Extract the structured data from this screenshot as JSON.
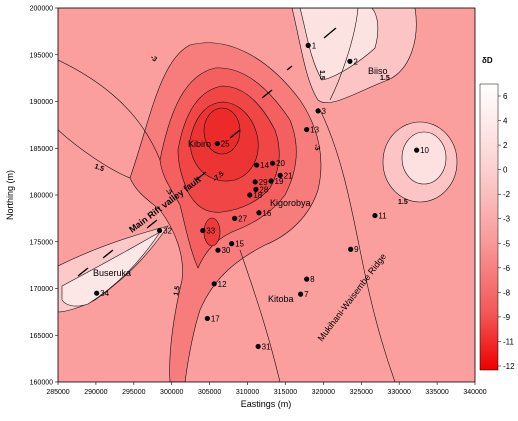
{
  "map": {
    "x_axis_title": "Eastings (m)",
    "y_axis_title": "Northing (m)",
    "x_ticks": [
      "285000",
      "290000",
      "295000",
      "300000",
      "305000",
      "310000",
      "315000",
      "320000",
      "325000",
      "330000",
      "335000",
      "340000"
    ],
    "y_ticks": [
      "200000",
      "195000",
      "190000",
      "185000",
      "180000",
      "175000",
      "170000",
      "165000",
      "160000"
    ],
    "legend_title": "δD",
    "legend_values": [
      "6",
      "4",
      "2",
      "0",
      "-2",
      "-3",
      "-5",
      "-6",
      "-8",
      "-9",
      "-11",
      "-12"
    ],
    "contour_labels": [
      "-3",
      "1.5",
      "1.5",
      "-3",
      "-7.5",
      "1.5",
      "-3",
      "1.5",
      "1.5"
    ],
    "place_names": {
      "biiso": "Biiso",
      "kibiro": "Kibiro",
      "kigorobya": "Kigorobya",
      "buseruka": "Buseruka",
      "kitoba": "Kitoba"
    },
    "fault_label": "Main Rift valley fault",
    "ridge_label": "Mukihani-Waisembe Ridge",
    "stations": [
      {
        "id": "1",
        "e": 318000,
        "n": 196000
      },
      {
        "id": "2",
        "e": 323500,
        "n": 194300
      },
      {
        "id": "3",
        "e": 319300,
        "n": 189000
      },
      {
        "id": "10",
        "e": 332300,
        "n": 184800
      },
      {
        "id": "13",
        "e": 317800,
        "n": 187000
      },
      {
        "id": "25",
        "e": 306000,
        "n": 185500
      },
      {
        "id": "14",
        "e": 311200,
        "n": 183200
      },
      {
        "id": "20",
        "e": 313300,
        "n": 183400
      },
      {
        "id": "21",
        "e": 314300,
        "n": 182100
      },
      {
        "id": "19",
        "e": 313100,
        "n": 181500
      },
      {
        "id": "29",
        "e": 311000,
        "n": 181400
      },
      {
        "id": "28",
        "e": 311100,
        "n": 180600
      },
      {
        "id": "18",
        "e": 310300,
        "n": 180000
      },
      {
        "id": "16",
        "e": 311500,
        "n": 178100
      },
      {
        "id": "27",
        "e": 308300,
        "n": 177500
      },
      {
        "id": "11",
        "e": 326800,
        "n": 177800
      },
      {
        "id": "33",
        "e": 304100,
        "n": 176200
      },
      {
        "id": "32",
        "e": 298400,
        "n": 176200
      },
      {
        "id": "15",
        "e": 307900,
        "n": 174800
      },
      {
        "id": "30",
        "e": 306100,
        "n": 174100
      },
      {
        "id": "9",
        "e": 323600,
        "n": 174200
      },
      {
        "id": "8",
        "e": 317800,
        "n": 171000
      },
      {
        "id": "12",
        "e": 305600,
        "n": 170500
      },
      {
        "id": "7",
        "e": 317000,
        "n": 169400
      },
      {
        "id": "34",
        "e": 290100,
        "n": 169500
      },
      {
        "id": "17",
        "e": 304700,
        "n": 166800
      },
      {
        "id": "31",
        "e": 311400,
        "n": 163800
      }
    ],
    "colors": {
      "background": "#fa9a9a",
      "light": "#fde0e0",
      "deep": "#ec3c3c"
    }
  }
}
